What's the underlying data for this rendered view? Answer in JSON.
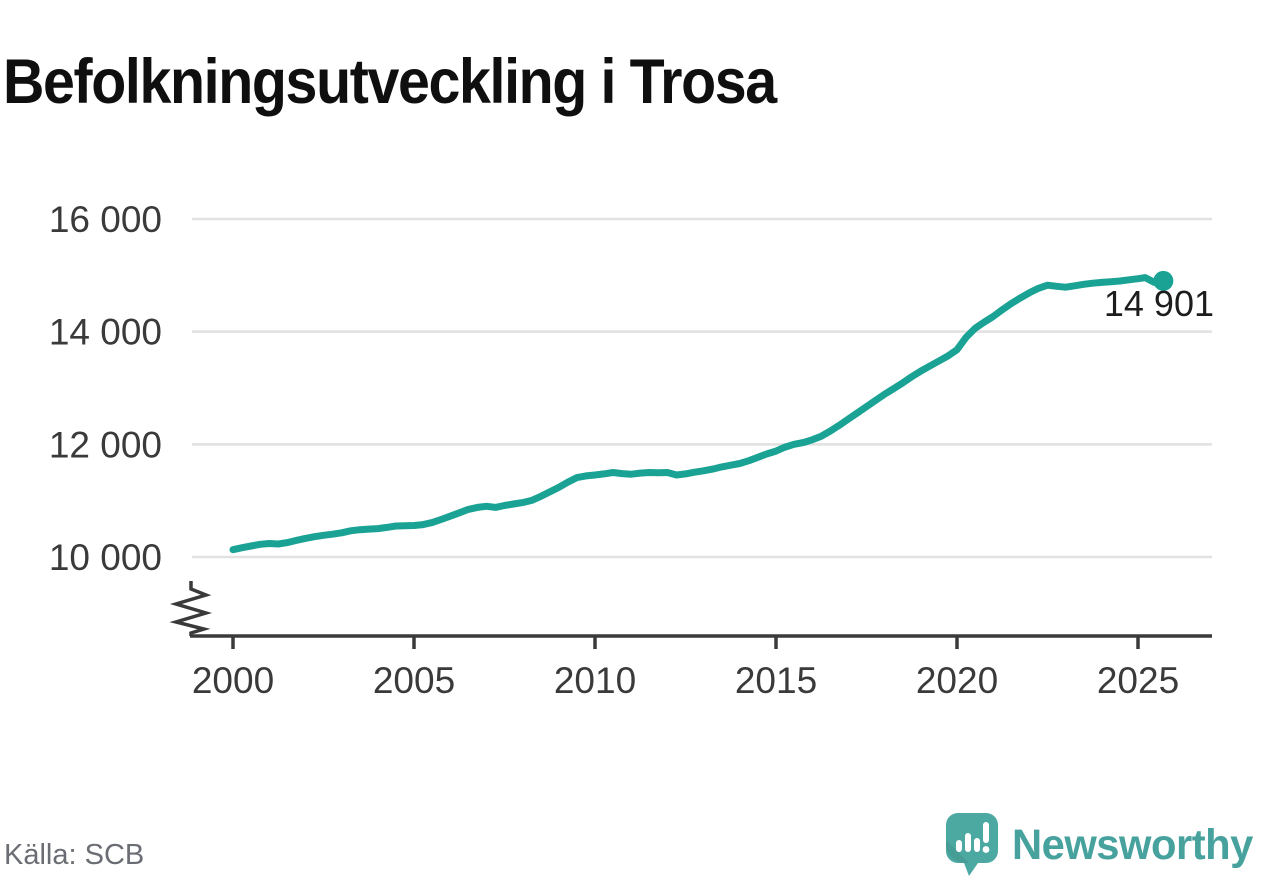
{
  "title": "Befolkningsutveckling i Trosa",
  "source": "Källa: SCB",
  "logo": {
    "brand": "Newsworthy",
    "icon": "newsworthy-speech-bubble-bar-chart-icon"
  },
  "colors": {
    "line": "#1aa394",
    "end_dot": "#1aa394",
    "grid": "#e1e1e1",
    "axis": "#3a3a3a",
    "tick_label": "#3a3a3a",
    "end_label": "#1d1d1d",
    "title": "#0f0f0f",
    "source_text": "#6a6e74",
    "logo_teal": "#4ca9a2",
    "logo_teal_dark": "#3f948d",
    "logo_text": "#47a29e",
    "background": "#ffffff"
  },
  "chart_data": {
    "type": "line",
    "title": "Befolkningsutveckling i Trosa",
    "xlabel": "",
    "ylabel": "",
    "x_ticks": [
      2000,
      2005,
      2010,
      2015,
      2020,
      2025
    ],
    "x_tick_labels": [
      "2000",
      "2005",
      "2010",
      "2015",
      "2020",
      "2025"
    ],
    "y_ticks": [
      10000,
      12000,
      14000,
      16000
    ],
    "y_tick_labels": [
      "10 000",
      "12 000",
      "14 000",
      "16 000"
    ],
    "xlim": [
      2000,
      2025.75
    ],
    "ylim": [
      10000,
      16000
    ],
    "axis_break_below": 10000,
    "grid": "horizontal",
    "legend": "none",
    "end_label": "14 901",
    "end_value": 14901,
    "series": [
      {
        "points": [
          [
            2000.0,
            10130
          ],
          [
            2000.25,
            10165
          ],
          [
            2000.5,
            10195
          ],
          [
            2000.75,
            10225
          ],
          [
            2001.0,
            10240
          ],
          [
            2001.25,
            10230
          ],
          [
            2001.5,
            10255
          ],
          [
            2001.75,
            10295
          ],
          [
            2002.0,
            10330
          ],
          [
            2002.25,
            10360
          ],
          [
            2002.5,
            10385
          ],
          [
            2002.75,
            10405
          ],
          [
            2003.0,
            10430
          ],
          [
            2003.25,
            10465
          ],
          [
            2003.5,
            10485
          ],
          [
            2003.75,
            10495
          ],
          [
            2004.0,
            10505
          ],
          [
            2004.25,
            10525
          ],
          [
            2004.5,
            10550
          ],
          [
            2004.75,
            10555
          ],
          [
            2005.0,
            10560
          ],
          [
            2005.25,
            10575
          ],
          [
            2005.5,
            10610
          ],
          [
            2005.75,
            10665
          ],
          [
            2006.0,
            10725
          ],
          [
            2006.25,
            10785
          ],
          [
            2006.5,
            10845
          ],
          [
            2006.75,
            10880
          ],
          [
            2007.0,
            10900
          ],
          [
            2007.25,
            10880
          ],
          [
            2007.5,
            10915
          ],
          [
            2007.75,
            10940
          ],
          [
            2008.0,
            10965
          ],
          [
            2008.25,
            11005
          ],
          [
            2008.5,
            11075
          ],
          [
            2008.75,
            11155
          ],
          [
            2009.0,
            11235
          ],
          [
            2009.25,
            11330
          ],
          [
            2009.5,
            11410
          ],
          [
            2009.75,
            11440
          ],
          [
            2010.0,
            11455
          ],
          [
            2010.25,
            11475
          ],
          [
            2010.5,
            11500
          ],
          [
            2010.75,
            11480
          ],
          [
            2011.0,
            11470
          ],
          [
            2011.25,
            11490
          ],
          [
            2011.5,
            11500
          ],
          [
            2011.75,
            11495
          ],
          [
            2012.0,
            11500
          ],
          [
            2012.25,
            11455
          ],
          [
            2012.5,
            11475
          ],
          [
            2012.75,
            11505
          ],
          [
            2013.0,
            11530
          ],
          [
            2013.25,
            11560
          ],
          [
            2013.5,
            11600
          ],
          [
            2013.75,
            11630
          ],
          [
            2014.0,
            11660
          ],
          [
            2014.25,
            11710
          ],
          [
            2014.5,
            11770
          ],
          [
            2014.75,
            11830
          ],
          [
            2015.0,
            11880
          ],
          [
            2015.25,
            11950
          ],
          [
            2015.5,
            12000
          ],
          [
            2015.75,
            12030
          ],
          [
            2016.0,
            12080
          ],
          [
            2016.25,
            12145
          ],
          [
            2016.5,
            12235
          ],
          [
            2016.75,
            12340
          ],
          [
            2017.0,
            12450
          ],
          [
            2017.25,
            12560
          ],
          [
            2017.5,
            12670
          ],
          [
            2017.75,
            12780
          ],
          [
            2018.0,
            12890
          ],
          [
            2018.25,
            12990
          ],
          [
            2018.5,
            13090
          ],
          [
            2018.75,
            13200
          ],
          [
            2019.0,
            13300
          ],
          [
            2019.25,
            13390
          ],
          [
            2019.5,
            13480
          ],
          [
            2019.75,
            13570
          ],
          [
            2020.0,
            13680
          ],
          [
            2020.25,
            13900
          ],
          [
            2020.5,
            14060
          ],
          [
            2020.75,
            14170
          ],
          [
            2021.0,
            14270
          ],
          [
            2021.25,
            14390
          ],
          [
            2021.5,
            14500
          ],
          [
            2021.75,
            14600
          ],
          [
            2022.0,
            14690
          ],
          [
            2022.25,
            14770
          ],
          [
            2022.5,
            14825
          ],
          [
            2022.75,
            14805
          ],
          [
            2023.0,
            14790
          ],
          [
            2023.25,
            14815
          ],
          [
            2023.5,
            14840
          ],
          [
            2023.75,
            14860
          ],
          [
            2024.0,
            14875
          ],
          [
            2024.25,
            14885
          ],
          [
            2024.5,
            14900
          ],
          [
            2024.75,
            14920
          ],
          [
            2025.0,
            14940
          ],
          [
            2025.2,
            14960
          ],
          [
            2025.45,
            14875
          ],
          [
            2025.7,
            14901
          ]
        ]
      }
    ]
  }
}
